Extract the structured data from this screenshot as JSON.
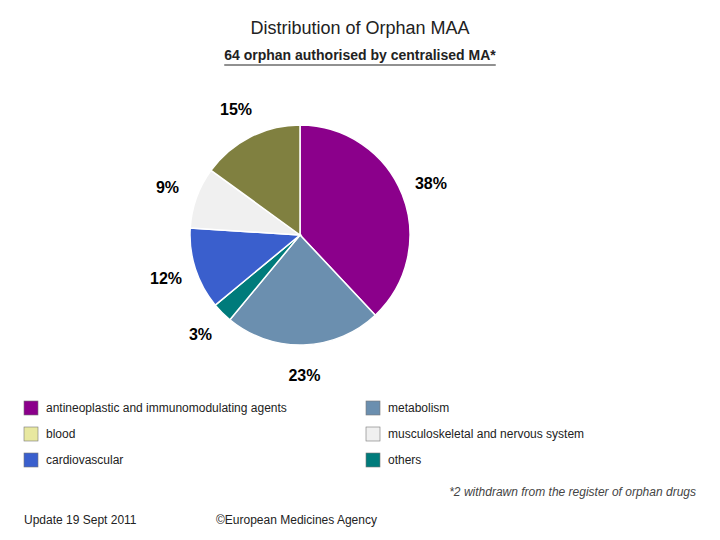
{
  "chart_data": {
    "type": "pie",
    "title": "Distribution of Orphan MAA",
    "subtitle": "64 orphan authorised by centralised MA*",
    "values": [
      38,
      23,
      3,
      12,
      9,
      15
    ],
    "value_labels": [
      "38%",
      "23%",
      "3%",
      "12%",
      "9%",
      "15%"
    ],
    "colors": [
      "#8B008B",
      "#6B8FAF",
      "#007B7B",
      "#3A5FCD",
      "#F0F0F0",
      "#808040"
    ],
    "data_labels": true,
    "legend": "bottom",
    "legend_entries": [
      {
        "label": "antineoplastic and immunomodulating agents",
        "color": "#8B008B"
      },
      {
        "label": "blood",
        "color": "#E8E8A0"
      },
      {
        "label": "cardiovascular",
        "color": "#3A5FCD"
      },
      {
        "label": "metabolism",
        "color": "#6B8FAF"
      },
      {
        "label": "musculoskeletal and nervous system",
        "color": "#F0F0F0"
      },
      {
        "label": "others",
        "color": "#007B7B"
      }
    ],
    "footnote": "*2 withdrawn from the register of orphan drugs",
    "footer_left": "Update 19 Sept 2011",
    "footer_right": "©European Medicines Agency"
  }
}
